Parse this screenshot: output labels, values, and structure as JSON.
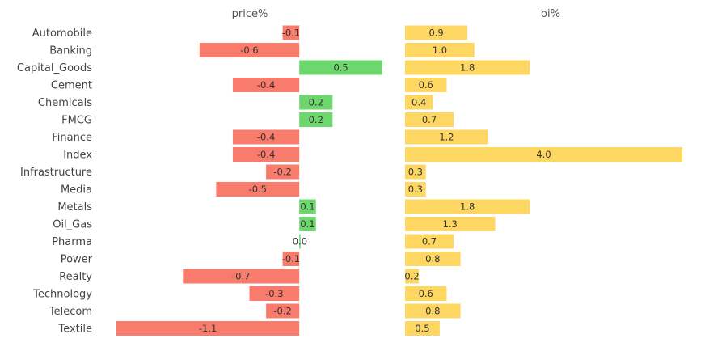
{
  "chart_data": {
    "type": "bar",
    "orientation": "horizontal",
    "grid": false,
    "categories": [
      "Automobile",
      "Banking",
      "Capital_Goods",
      "Cement",
      "Chemicals",
      "FMCG",
      "Finance",
      "Index",
      "Infrastructure",
      "Media",
      "Metals",
      "Oil_Gas",
      "Pharma",
      "Power",
      "Realty",
      "Technology",
      "Telecom",
      "Textile"
    ],
    "panels": [
      {
        "title": "price%",
        "values": [
          -0.1,
          -0.6,
          0.5,
          -0.4,
          0.2,
          0.2,
          -0.4,
          -0.4,
          -0.2,
          -0.5,
          0.1,
          0.1,
          0.0,
          -0.1,
          -0.7,
          -0.3,
          -0.2,
          -1.1
        ],
        "labels": [
          "-0.1",
          "-0.6",
          "0.5",
          "-0.4",
          "0.2",
          "0.2",
          "-0.4",
          "-0.4",
          "-0.2",
          "-0.5",
          "0.1",
          "0.1",
          "0.0",
          "-0.1",
          "-0.7",
          "-0.3",
          "-0.2",
          "-1.1"
        ],
        "xlim": [
          -1.1,
          0.5
        ],
        "positive_color": "#6dd66d",
        "negative_color": "#f97b6c"
      },
      {
        "title": "oi%",
        "values": [
          0.9,
          1.0,
          1.8,
          0.6,
          0.4,
          0.7,
          1.2,
          4.0,
          0.3,
          0.3,
          1.8,
          1.3,
          0.7,
          0.8,
          0.2,
          0.6,
          0.8,
          0.5
        ],
        "labels": [
          "0.9",
          "1.0",
          "1.8",
          "0.6",
          "0.4",
          "0.7",
          "1.2",
          "4.0",
          "0.3",
          "0.3",
          "1.8",
          "1.3",
          "0.7",
          "0.8",
          "0.2",
          "0.6",
          "0.8",
          "0.5"
        ],
        "xlim": [
          0,
          4.0
        ],
        "color": "#fdd762"
      }
    ]
  }
}
